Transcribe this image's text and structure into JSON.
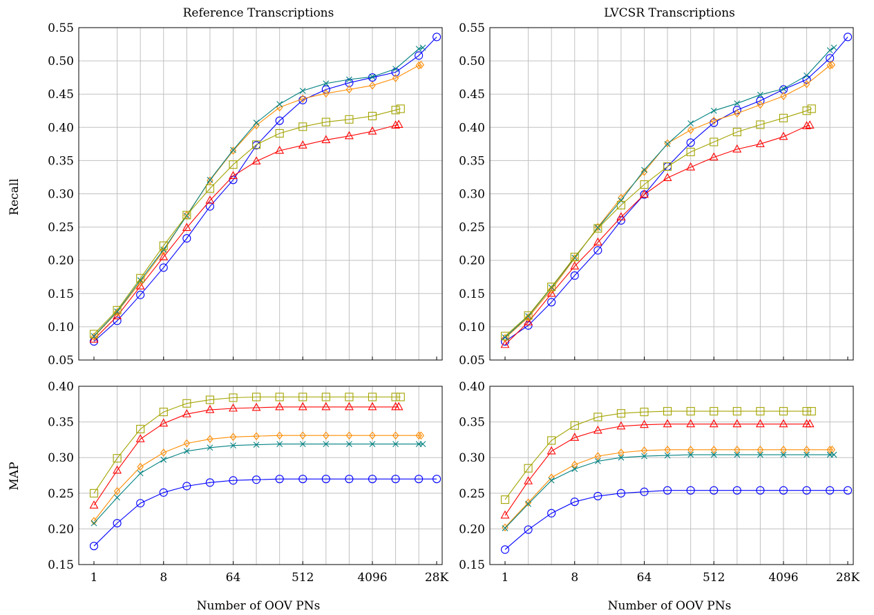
{
  "figure": {
    "xlabel": "Number of OOV PNs",
    "recall_ylabel": "Recall",
    "map_ylabel": "MAP",
    "x_ticks": [
      {
        "pos": 0,
        "label": "1"
      },
      {
        "pos": 3,
        "label": "8"
      },
      {
        "pos": 6,
        "label": "64"
      },
      {
        "pos": 9,
        "label": "512"
      },
      {
        "pos": 12,
        "label": "4096"
      },
      {
        "pos": 14.77,
        "label": "28K"
      }
    ],
    "recall_yticks": [
      "0.05",
      "0.10",
      "0.15",
      "0.20",
      "0.25",
      "0.30",
      "0.35",
      "0.40",
      "0.45",
      "0.50",
      "0.55"
    ],
    "map_yticks": [
      "0.15",
      "0.20",
      "0.25",
      "0.30",
      "0.35",
      "0.40"
    ]
  },
  "chart_data": [
    {
      "type": "line",
      "title": "Reference Transcriptions",
      "xlabel": "",
      "ylabel": "Recall",
      "x_scale": "log2",
      "ylim": [
        0.05,
        0.55
      ],
      "series": [
        {
          "marker": "circle",
          "color": "#0000ff",
          "x": [
            1,
            2,
            4,
            8,
            16,
            32,
            64,
            128,
            256,
            512,
            1024,
            2048,
            4096,
            8192,
            16384,
            28000
          ],
          "values": [
            0.078,
            0.109,
            0.148,
            0.189,
            0.233,
            0.281,
            0.321,
            0.373,
            0.41,
            0.441,
            0.457,
            0.467,
            0.475,
            0.483,
            0.508,
            0.536
          ]
        },
        {
          "marker": "triangle",
          "color": "#ff0000",
          "x": [
            1,
            2,
            4,
            8,
            16,
            32,
            64,
            128,
            256,
            512,
            1024,
            2048,
            4096,
            8192,
            9000
          ],
          "values": [
            0.081,
            0.116,
            0.161,
            0.205,
            0.249,
            0.29,
            0.327,
            0.349,
            0.365,
            0.373,
            0.381,
            0.387,
            0.394,
            0.403,
            0.404
          ]
        },
        {
          "marker": "diamond",
          "color": "#ff8c00",
          "x": [
            1,
            2,
            4,
            8,
            16,
            32,
            64,
            128,
            256,
            512,
            1024,
            2048,
            4096,
            8192,
            16384,
            17500
          ],
          "values": [
            0.085,
            0.122,
            0.167,
            0.214,
            0.268,
            0.32,
            0.365,
            0.403,
            0.43,
            0.443,
            0.451,
            0.457,
            0.463,
            0.474,
            0.493,
            0.494
          ]
        },
        {
          "marker": "cross",
          "color": "#008080",
          "x": [
            1,
            2,
            4,
            8,
            16,
            32,
            64,
            128,
            256,
            512,
            1024,
            2048,
            4096,
            8192,
            16384,
            18500
          ],
          "values": [
            0.086,
            0.123,
            0.17,
            0.216,
            0.267,
            0.321,
            0.366,
            0.407,
            0.435,
            0.455,
            0.466,
            0.472,
            0.476,
            0.488,
            0.518,
            0.52
          ]
        },
        {
          "marker": "square",
          "color": "#a3a300",
          "x": [
            1,
            2,
            4,
            8,
            16,
            32,
            64,
            128,
            256,
            512,
            1024,
            2048,
            4096,
            8192,
            9500
          ],
          "values": [
            0.089,
            0.125,
            0.173,
            0.222,
            0.268,
            0.308,
            0.344,
            0.374,
            0.391,
            0.401,
            0.408,
            0.412,
            0.417,
            0.426,
            0.428
          ]
        }
      ]
    },
    {
      "type": "line",
      "title": "LVCSR Transcriptions",
      "xlabel": "",
      "ylabel": "",
      "x_scale": "log2",
      "ylim": [
        0.05,
        0.55
      ],
      "series": [
        {
          "marker": "circle",
          "color": "#0000ff",
          "x": [
            1,
            2,
            4,
            8,
            16,
            32,
            64,
            128,
            256,
            512,
            1024,
            2048,
            4096,
            8192,
            16384,
            28000
          ],
          "values": [
            0.078,
            0.102,
            0.137,
            0.177,
            0.215,
            0.26,
            0.299,
            0.341,
            0.377,
            0.407,
            0.426,
            0.44,
            0.457,
            0.472,
            0.504,
            0.536
          ]
        },
        {
          "marker": "triangle",
          "color": "#ff0000",
          "x": [
            1,
            2,
            4,
            8,
            16,
            32,
            64,
            128,
            256,
            512,
            1024,
            2048,
            4096,
            8192,
            9000
          ],
          "values": [
            0.073,
            0.107,
            0.15,
            0.191,
            0.227,
            0.265,
            0.299,
            0.324,
            0.34,
            0.355,
            0.367,
            0.375,
            0.386,
            0.402,
            0.403
          ]
        },
        {
          "marker": "diamond",
          "color": "#ff8c00",
          "x": [
            1,
            2,
            4,
            8,
            16,
            32,
            64,
            128,
            256,
            512,
            1024,
            2048,
            4096,
            8192,
            16384,
            17500
          ],
          "values": [
            0.083,
            0.114,
            0.156,
            0.203,
            0.25,
            0.294,
            0.333,
            0.376,
            0.396,
            0.41,
            0.421,
            0.434,
            0.447,
            0.465,
            0.493,
            0.494
          ]
        },
        {
          "marker": "cross",
          "color": "#008080",
          "x": [
            1,
            2,
            4,
            8,
            16,
            32,
            64,
            128,
            256,
            512,
            1024,
            2048,
            4096,
            8192,
            16384,
            18500
          ],
          "values": [
            0.084,
            0.116,
            0.159,
            0.204,
            0.249,
            0.29,
            0.336,
            0.375,
            0.406,
            0.425,
            0.436,
            0.449,
            0.458,
            0.478,
            0.516,
            0.52
          ]
        },
        {
          "marker": "square",
          "color": "#a3a300",
          "x": [
            1,
            2,
            4,
            8,
            16,
            32,
            64,
            128,
            256,
            512,
            1024,
            2048,
            4096,
            8192,
            9500
          ],
          "values": [
            0.086,
            0.117,
            0.16,
            0.205,
            0.248,
            0.283,
            0.314,
            0.341,
            0.363,
            0.378,
            0.393,
            0.404,
            0.414,
            0.425,
            0.428
          ]
        }
      ]
    },
    {
      "type": "line",
      "title": "",
      "xlabel": "Number of OOV PNs",
      "ylabel": "MAP",
      "x_scale": "log2",
      "ylim": [
        0.15,
        0.4
      ],
      "series": [
        {
          "marker": "circle",
          "color": "#0000ff",
          "x": [
            1,
            2,
            4,
            8,
            16,
            32,
            64,
            128,
            256,
            512,
            1024,
            2048,
            4096,
            8192,
            16384,
            28000
          ],
          "values": [
            0.176,
            0.208,
            0.236,
            0.251,
            0.26,
            0.265,
            0.268,
            0.269,
            0.27,
            0.27,
            0.27,
            0.27,
            0.27,
            0.27,
            0.27,
            0.27
          ]
        },
        {
          "marker": "triangle",
          "color": "#ff0000",
          "x": [
            1,
            2,
            4,
            8,
            16,
            32,
            64,
            128,
            256,
            512,
            1024,
            2048,
            4096,
            8192,
            9000
          ],
          "values": [
            0.233,
            0.282,
            0.326,
            0.348,
            0.361,
            0.367,
            0.369,
            0.37,
            0.371,
            0.371,
            0.371,
            0.371,
            0.371,
            0.371,
            0.371
          ]
        },
        {
          "marker": "diamond",
          "color": "#ff8c00",
          "x": [
            1,
            2,
            4,
            8,
            16,
            32,
            64,
            128,
            256,
            512,
            1024,
            2048,
            4096,
            8192,
            16384,
            17500
          ],
          "values": [
            0.211,
            0.253,
            0.287,
            0.307,
            0.32,
            0.326,
            0.329,
            0.33,
            0.331,
            0.331,
            0.331,
            0.331,
            0.331,
            0.331,
            0.331,
            0.331
          ]
        },
        {
          "marker": "cross",
          "color": "#008080",
          "x": [
            1,
            2,
            4,
            8,
            16,
            32,
            64,
            128,
            256,
            512,
            1024,
            2048,
            4096,
            8192,
            16384,
            18500
          ],
          "values": [
            0.208,
            0.244,
            0.278,
            0.297,
            0.309,
            0.314,
            0.317,
            0.318,
            0.319,
            0.319,
            0.319,
            0.319,
            0.319,
            0.319,
            0.319,
            0.319
          ]
        },
        {
          "marker": "square",
          "color": "#a3a300",
          "x": [
            1,
            2,
            4,
            8,
            16,
            32,
            64,
            128,
            256,
            512,
            1024,
            2048,
            4096,
            8192,
            9500
          ],
          "values": [
            0.25,
            0.299,
            0.34,
            0.364,
            0.376,
            0.381,
            0.384,
            0.385,
            0.385,
            0.385,
            0.385,
            0.385,
            0.385,
            0.385,
            0.385
          ]
        }
      ]
    },
    {
      "type": "line",
      "title": "",
      "xlabel": "Number of OOV PNs",
      "ylabel": "",
      "x_scale": "log2",
      "ylim": [
        0.15,
        0.4
      ],
      "series": [
        {
          "marker": "circle",
          "color": "#0000ff",
          "x": [
            1,
            2,
            4,
            8,
            16,
            32,
            64,
            128,
            256,
            512,
            1024,
            2048,
            4096,
            8192,
            16384,
            28000
          ],
          "values": [
            0.171,
            0.199,
            0.222,
            0.238,
            0.246,
            0.25,
            0.252,
            0.254,
            0.254,
            0.254,
            0.254,
            0.254,
            0.254,
            0.254,
            0.254,
            0.254
          ]
        },
        {
          "marker": "triangle",
          "color": "#ff0000",
          "x": [
            1,
            2,
            4,
            8,
            16,
            32,
            64,
            128,
            256,
            512,
            1024,
            2048,
            4096,
            8192,
            9000
          ],
          "values": [
            0.219,
            0.267,
            0.309,
            0.328,
            0.338,
            0.344,
            0.346,
            0.347,
            0.347,
            0.347,
            0.347,
            0.347,
            0.347,
            0.347,
            0.347
          ]
        },
        {
          "marker": "diamond",
          "color": "#ff8c00",
          "x": [
            1,
            2,
            4,
            8,
            16,
            32,
            64,
            128,
            256,
            512,
            1024,
            2048,
            4096,
            8192,
            16384,
            17500
          ],
          "values": [
            0.202,
            0.237,
            0.272,
            0.29,
            0.302,
            0.307,
            0.31,
            0.311,
            0.311,
            0.311,
            0.311,
            0.311,
            0.311,
            0.311,
            0.311,
            0.311
          ]
        },
        {
          "marker": "cross",
          "color": "#008080",
          "x": [
            1,
            2,
            4,
            8,
            16,
            32,
            64,
            128,
            256,
            512,
            1024,
            2048,
            4096,
            8192,
            16384,
            18500
          ],
          "values": [
            0.201,
            0.235,
            0.268,
            0.284,
            0.295,
            0.3,
            0.302,
            0.303,
            0.304,
            0.304,
            0.304,
            0.304,
            0.304,
            0.304,
            0.304,
            0.304
          ]
        },
        {
          "marker": "square",
          "color": "#a3a300",
          "x": [
            1,
            2,
            4,
            8,
            16,
            32,
            64,
            128,
            256,
            512,
            1024,
            2048,
            4096,
            8192,
            9500
          ],
          "values": [
            0.241,
            0.285,
            0.324,
            0.345,
            0.357,
            0.362,
            0.364,
            0.365,
            0.365,
            0.365,
            0.365,
            0.365,
            0.365,
            0.365,
            0.365
          ]
        }
      ]
    }
  ]
}
